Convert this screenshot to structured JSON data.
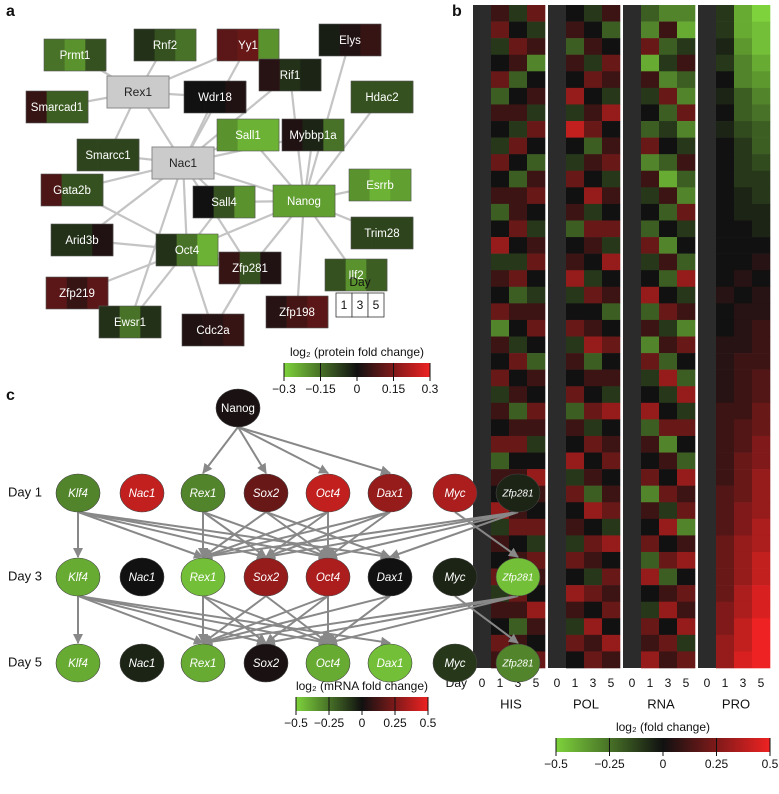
{
  "panel_labels": [
    "a",
    "b",
    "c"
  ],
  "network": {
    "nodes": [
      {
        "label": "Prmt1",
        "values": [
          -0.15,
          -0.2,
          -0.1
        ]
      },
      {
        "label": "Rnf2",
        "values": [
          -0.05,
          -0.1,
          -0.15
        ]
      },
      {
        "label": "Yy1",
        "values": [
          0.1,
          0.12,
          -0.2
        ]
      },
      {
        "label": "Elys",
        "values": [
          -0.02,
          0.02,
          0.05
        ]
      },
      {
        "label": "Rex1",
        "values": null
      },
      {
        "label": "Wdr18",
        "values": [
          0,
          0,
          0.02
        ]
      },
      {
        "label": "Rif1",
        "values": [
          0.03,
          -0.05,
          -0.03
        ]
      },
      {
        "label": "Hdac2",
        "values": [
          -0.1,
          -0.1,
          -0.1
        ]
      },
      {
        "label": "Smarcad1",
        "values": [
          0.05,
          -0.12,
          -0.12
        ]
      },
      {
        "label": "Sall1",
        "values": [
          -0.2,
          -0.25,
          -0.25
        ]
      },
      {
        "label": "Mybbp1a",
        "values": [
          0.02,
          -0.03,
          -0.15
        ]
      },
      {
        "label": "Smarcc1",
        "values": [
          -0.08,
          -0.08,
          -0.08
        ]
      },
      {
        "label": "Nac1",
        "values": null
      },
      {
        "label": "Esrrb",
        "values": [
          -0.2,
          -0.25,
          -0.22
        ]
      },
      {
        "label": "Gata2b",
        "values": [
          0.08,
          -0.1,
          -0.1
        ]
      },
      {
        "label": "Sall4",
        "values": [
          0,
          -0.1,
          -0.2
        ]
      },
      {
        "label": "Nanog",
        "values": [
          -0.22,
          -0.22,
          -0.22
        ]
      },
      {
        "label": "Trim28",
        "values": [
          -0.08,
          -0.08,
          -0.08
        ]
      },
      {
        "label": "Arid3b",
        "values": [
          -0.05,
          -0.05,
          0.02
        ]
      },
      {
        "label": "Oct4",
        "values": [
          -0.05,
          -0.15,
          -0.25
        ]
      },
      {
        "label": "Zfp281",
        "values": [
          0.05,
          -0.1,
          0.02
        ]
      },
      {
        "label": "Ilf2",
        "values": [
          -0.1,
          -0.2,
          -0.12
        ]
      },
      {
        "label": "Zfp219",
        "values": [
          0.1,
          0.05,
          0.1
        ]
      },
      {
        "label": "Ewsr1",
        "values": [
          -0.05,
          -0.15,
          -0.05
        ]
      },
      {
        "label": "Cdc2a",
        "values": [
          0.02,
          0.03,
          0.05
        ]
      },
      {
        "label": "Zfp198",
        "values": [
          0.03,
          0.07,
          0.1
        ]
      }
    ],
    "day_legend": {
      "title": "Day",
      "days": [
        1,
        3,
        5
      ]
    },
    "colorbar": {
      "title": "log₂ (protein fold change)",
      "lim": [
        -0.3,
        0.3
      ],
      "colors": [
        "#7ed23c",
        "#111111",
        "#ee2222"
      ],
      "ticks": [
        {
          "value": -0.3,
          "label": "−0.3"
        },
        {
          "value": -0.15,
          "label": "−0.15"
        },
        0,
        0.15,
        0.3
      ]
    }
  },
  "heatmap": {
    "groups": [
      "HIS",
      "POL",
      "RNA",
      "PRO"
    ],
    "day_label": "Day",
    "days": [
      0,
      1,
      3,
      5
    ],
    "rows": [
      [
        0.1,
        -0.1,
        0.2,
        0,
        -0.1,
        0.1,
        -0.2,
        -0.3,
        -0.3,
        -0.1,
        -0.4,
        -0.5
      ],
      [
        0.2,
        0,
        -0.1,
        0.1,
        0,
        -0.2,
        -0.3,
        0.1,
        -0.4,
        -0.1,
        -0.4,
        -0.45
      ],
      [
        -0.1,
        0.2,
        0.1,
        -0.2,
        0.1,
        0,
        0.2,
        -0.2,
        -0.1,
        -0.05,
        -0.35,
        -0.45
      ],
      [
        0,
        0.1,
        -0.3,
        0.1,
        -0.1,
        0.2,
        -0.4,
        -0.1,
        0.1,
        -0.1,
        -0.3,
        -0.4
      ],
      [
        0.2,
        -0.2,
        0,
        0,
        0.2,
        0.1,
        0.1,
        -0.3,
        -0.2,
        0,
        -0.3,
        -0.35
      ],
      [
        -0.2,
        0,
        0.1,
        0.3,
        0,
        -0.1,
        -0.1,
        0.2,
        -0.3,
        -0.05,
        -0.2,
        -0.3
      ],
      [
        0.1,
        0.1,
        -0.1,
        -0.1,
        0.1,
        0.3,
        0,
        -0.2,
        0.2,
        0,
        -0.2,
        -0.25
      ],
      [
        0,
        -0.1,
        0.2,
        0.4,
        0.2,
        0,
        -0.2,
        -0.1,
        -0.3,
        -0.05,
        -0.15,
        -0.2
      ],
      [
        -0.1,
        0.2,
        0,
        0,
        -0.2,
        0.1,
        0.2,
        0,
        -0.1,
        0,
        -0.1,
        -0.2
      ],
      [
        0.2,
        0,
        -0.2,
        -0.1,
        0.1,
        0.2,
        -0.3,
        -0.2,
        0.1,
        0,
        -0.1,
        -0.15
      ],
      [
        0,
        -0.2,
        0.1,
        0.2,
        0,
        -0.1,
        0.1,
        -0.4,
        -0.2,
        0,
        -0.1,
        -0.1
      ],
      [
        0.1,
        0.1,
        0.2,
        0,
        0.3,
        0.1,
        -0.1,
        0.1,
        -0.3,
        0,
        -0.05,
        -0.1
      ],
      [
        -0.2,
        0.1,
        0,
        0.1,
        -0.1,
        0,
        0,
        -0.2,
        0.2,
        0,
        -0.05,
        -0.05
      ],
      [
        0,
        0.2,
        -0.1,
        -0.2,
        0.2,
        0.2,
        -0.2,
        0,
        -0.1,
        0,
        0,
        -0.05
      ],
      [
        0.3,
        0,
        0.1,
        0,
        0.1,
        -0.1,
        0.2,
        -0.3,
        0,
        0,
        0,
        0
      ],
      [
        -0.1,
        -0.1,
        0.2,
        0.1,
        0,
        0.3,
        -0.1,
        0.1,
        -0.2,
        0,
        0,
        0.05
      ],
      [
        0.1,
        0.2,
        0,
        0.3,
        -0.1,
        0,
        0,
        -0.2,
        0.3,
        0,
        0.05,
        0
      ],
      [
        0,
        -0.2,
        -0.1,
        -0.1,
        0.2,
        0.1,
        0.3,
        0,
        -0.1,
        0.05,
        0,
        0.05
      ],
      [
        0.2,
        0.1,
        0.1,
        0,
        0,
        -0.2,
        -0.2,
        0.2,
        0.1,
        0,
        0.05,
        0.05
      ],
      [
        -0.3,
        0,
        0.2,
        0.2,
        0.1,
        0,
        0.1,
        -0.1,
        -0.3,
        0,
        0.05,
        0.1
      ],
      [
        0.1,
        -0.1,
        0,
        -0.1,
        0.3,
        0.2,
        -0.3,
        0.1,
        0.2,
        0.05,
        0.05,
        0.1
      ],
      [
        0,
        0.2,
        -0.2,
        0.1,
        -0.2,
        0,
        0.2,
        -0.2,
        0,
        0.05,
        0.1,
        0.1
      ],
      [
        0.2,
        0,
        0.1,
        0,
        0.1,
        0.1,
        -0.1,
        0.3,
        -0.2,
        0.05,
        0.1,
        0.15
      ],
      [
        -0.1,
        0.1,
        0,
        0.2,
        0,
        -0.1,
        0,
        -0.1,
        0.3,
        0.05,
        0.1,
        0.15
      ],
      [
        0.1,
        -0.2,
        0.2,
        -0.2,
        0.2,
        0.3,
        0.3,
        0,
        -0.1,
        0.1,
        0.1,
        0.2
      ],
      [
        0,
        0.1,
        0.1,
        0.1,
        -0.1,
        0,
        -0.2,
        0.2,
        0.2,
        0.1,
        0.15,
        0.2
      ],
      [
        0.2,
        0.2,
        -0.1,
        0,
        0.2,
        0.1,
        0.1,
        -0.3,
        0,
        0.1,
        0.15,
        0.25
      ],
      [
        -0.2,
        0,
        0,
        0.3,
        0,
        0.2,
        0,
        0.1,
        -0.2,
        0.1,
        0.2,
        0.25
      ],
      [
        0.1,
        0.1,
        0.3,
        -0.1,
        0.1,
        0,
        0.2,
        0,
        0.3,
        0.1,
        0.2,
        0.3
      ],
      [
        0,
        -0.1,
        0.1,
        0.2,
        -0.2,
        0.1,
        -0.3,
        0.2,
        0.1,
        0.15,
        0.2,
        0.3
      ],
      [
        0.3,
        0.1,
        0,
        0,
        0.3,
        0.2,
        0.1,
        -0.1,
        0.2,
        0.15,
        0.25,
        0.3
      ],
      [
        -0.1,
        0.2,
        0.2,
        0.1,
        0,
        -0.1,
        0,
        0.3,
        -0.3,
        0.15,
        0.25,
        0.35
      ],
      [
        0.1,
        0,
        -0.1,
        -0.1,
        0.2,
        0.3,
        0.2,
        0,
        0.1,
        0.2,
        0.3,
        0.35
      ],
      [
        0,
        0.1,
        0.2,
        0.2,
        0.1,
        0,
        -0.2,
        0.2,
        0.3,
        0.2,
        0.3,
        0.4
      ],
      [
        0.2,
        -0.1,
        0.1,
        0,
        -0.1,
        0.2,
        0.3,
        -0.2,
        0,
        0.2,
        0.3,
        0.4
      ],
      [
        -0.1,
        0.2,
        0,
        0.3,
        0.2,
        0.1,
        0,
        0.1,
        0.2,
        0.2,
        0.35,
        0.45
      ],
      [
        0.1,
        0.1,
        0.3,
        0.1,
        0,
        0.2,
        -0.1,
        0.3,
        0.1,
        0.25,
        0.35,
        0.45
      ],
      [
        0,
        -0.2,
        0.1,
        -0.1,
        0.3,
        0,
        0.2,
        0,
        0.3,
        0.25,
        0.4,
        0.5
      ],
      [
        0.2,
        0.1,
        0,
        0.2,
        0.1,
        0.3,
        0.1,
        0.2,
        -0.1,
        0.3,
        0.4,
        0.5
      ],
      [
        0.1,
        0.2,
        0.2,
        0,
        0.2,
        0.1,
        0.3,
        0.1,
        0.2,
        0.3,
        0.45,
        0.5
      ]
    ],
    "colorbar": {
      "title": "log₂ (fold change)",
      "lim": [
        -0.5,
        0.5
      ],
      "colors": [
        "#7ed23c",
        "#111111",
        "#ee2222"
      ],
      "ticks": [
        {
          "value": -0.5,
          "label": "−0.5"
        },
        {
          "value": -0.25,
          "label": "−0.25"
        },
        0,
        0.25,
        0.5
      ]
    }
  },
  "regulation": {
    "source": {
      "label": "Nanog",
      "value": 0.02
    },
    "genes": [
      "Klf4",
      "Nac1",
      "Rex1",
      "Sox2",
      "Oct4",
      "Dax1",
      "Myc",
      "Zfp281"
    ],
    "rows": [
      {
        "label": "Day 1",
        "values": [
          -0.3,
          0.4,
          -0.3,
          0.2,
          0.4,
          0.3,
          0.35,
          -0.05
        ]
      },
      {
        "label": "Day 3",
        "values": [
          -0.4,
          0,
          -0.45,
          0.3,
          0.35,
          0,
          -0.05,
          -0.45
        ]
      },
      {
        "label": "Day 5",
        "values": [
          -0.4,
          -0.05,
          -0.4,
          0.02,
          -0.4,
          -0.45,
          -0.1,
          -0.3
        ]
      }
    ],
    "colorbar": {
      "title": "log₂ (mRNA fold change)",
      "lim": [
        -0.5,
        0.5
      ],
      "colors": [
        "#7ed23c",
        "#111111",
        "#ee2222"
      ],
      "ticks": [
        {
          "value": -0.5,
          "label": "−0.5"
        },
        {
          "value": -0.25,
          "label": "−0.25"
        },
        0,
        0.25,
        0.5
      ]
    }
  }
}
